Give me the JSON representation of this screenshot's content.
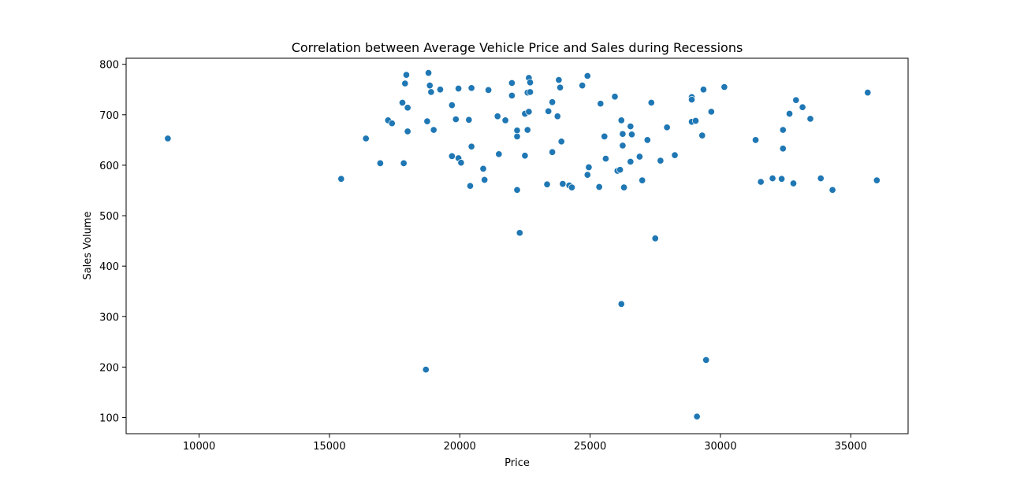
{
  "chart_data": {
    "type": "scatter",
    "title": "Correlation between Average Vehicle Price and Sales during Recessions",
    "xlabel": "Price",
    "ylabel": "Sales Volume",
    "xlim": [
      7200,
      37200
    ],
    "ylim": [
      68,
      812
    ],
    "xticks": [
      10000,
      15000,
      20000,
      25000,
      30000,
      35000
    ],
    "yticks": [
      100,
      200,
      300,
      400,
      500,
      600,
      700,
      800
    ],
    "grid": false,
    "color": "#1f77b4",
    "points": [
      [
        8800,
        653
      ],
      [
        15450,
        573
      ],
      [
        16400,
        653
      ],
      [
        16950,
        604
      ],
      [
        17250,
        689
      ],
      [
        17400,
        683
      ],
      [
        17800,
        724
      ],
      [
        17850,
        604
      ],
      [
        17900,
        762
      ],
      [
        17950,
        779
      ],
      [
        18000,
        714
      ],
      [
        18000,
        667
      ],
      [
        18700,
        195
      ],
      [
        18750,
        687
      ],
      [
        18800,
        783
      ],
      [
        18850,
        758
      ],
      [
        18900,
        745
      ],
      [
        19000,
        670
      ],
      [
        19250,
        750
      ],
      [
        19700,
        618
      ],
      [
        19700,
        719
      ],
      [
        19850,
        691
      ],
      [
        19950,
        752
      ],
      [
        19950,
        614
      ],
      [
        20050,
        605
      ],
      [
        20350,
        690
      ],
      [
        20400,
        559
      ],
      [
        20450,
        637
      ],
      [
        20450,
        753
      ],
      [
        20900,
        593
      ],
      [
        20950,
        571
      ],
      [
        21100,
        749
      ],
      [
        21450,
        697
      ],
      [
        21500,
        622
      ],
      [
        21750,
        689
      ],
      [
        22000,
        738
      ],
      [
        22000,
        763
      ],
      [
        22200,
        551
      ],
      [
        22200,
        657
      ],
      [
        22200,
        669
      ],
      [
        22300,
        466
      ],
      [
        22500,
        702
      ],
      [
        22500,
        619
      ],
      [
        22600,
        670
      ],
      [
        22600,
        744
      ],
      [
        22650,
        706
      ],
      [
        22650,
        773
      ],
      [
        22700,
        745
      ],
      [
        22700,
        764
      ],
      [
        23350,
        562
      ],
      [
        23400,
        707
      ],
      [
        23550,
        725
      ],
      [
        23550,
        626
      ],
      [
        23750,
        697
      ],
      [
        23800,
        769
      ],
      [
        23850,
        754
      ],
      [
        23900,
        647
      ],
      [
        23950,
        563
      ],
      [
        24200,
        560
      ],
      [
        24300,
        556
      ],
      [
        24700,
        758
      ],
      [
        24900,
        777
      ],
      [
        24900,
        581
      ],
      [
        24950,
        596
      ],
      [
        25350,
        557
      ],
      [
        25400,
        722
      ],
      [
        25550,
        657
      ],
      [
        25600,
        613
      ],
      [
        25950,
        736
      ],
      [
        26050,
        589
      ],
      [
        26150,
        591
      ],
      [
        26200,
        689
      ],
      [
        26200,
        325
      ],
      [
        26250,
        662
      ],
      [
        26250,
        639
      ],
      [
        26300,
        556
      ],
      [
        26550,
        677
      ],
      [
        26550,
        607
      ],
      [
        26600,
        661
      ],
      [
        26900,
        617
      ],
      [
        27000,
        570
      ],
      [
        27200,
        650
      ],
      [
        27350,
        724
      ],
      [
        27500,
        455
      ],
      [
        27700,
        609
      ],
      [
        27950,
        675
      ],
      [
        28250,
        620
      ],
      [
        28900,
        735
      ],
      [
        28900,
        730
      ],
      [
        28900,
        686
      ],
      [
        29050,
        688
      ],
      [
        29100,
        102
      ],
      [
        29300,
        659
      ],
      [
        29350,
        750
      ],
      [
        29450,
        214
      ],
      [
        29650,
        706
      ],
      [
        30150,
        755
      ],
      [
        31350,
        650
      ],
      [
        31550,
        567
      ],
      [
        32000,
        574
      ],
      [
        32350,
        573
      ],
      [
        32400,
        633
      ],
      [
        32400,
        670
      ],
      [
        32650,
        702
      ],
      [
        32800,
        564
      ],
      [
        32900,
        729
      ],
      [
        33150,
        715
      ],
      [
        33450,
        692
      ],
      [
        33850,
        574
      ],
      [
        34300,
        551
      ],
      [
        35650,
        744
      ],
      [
        36000,
        570
      ]
    ]
  }
}
